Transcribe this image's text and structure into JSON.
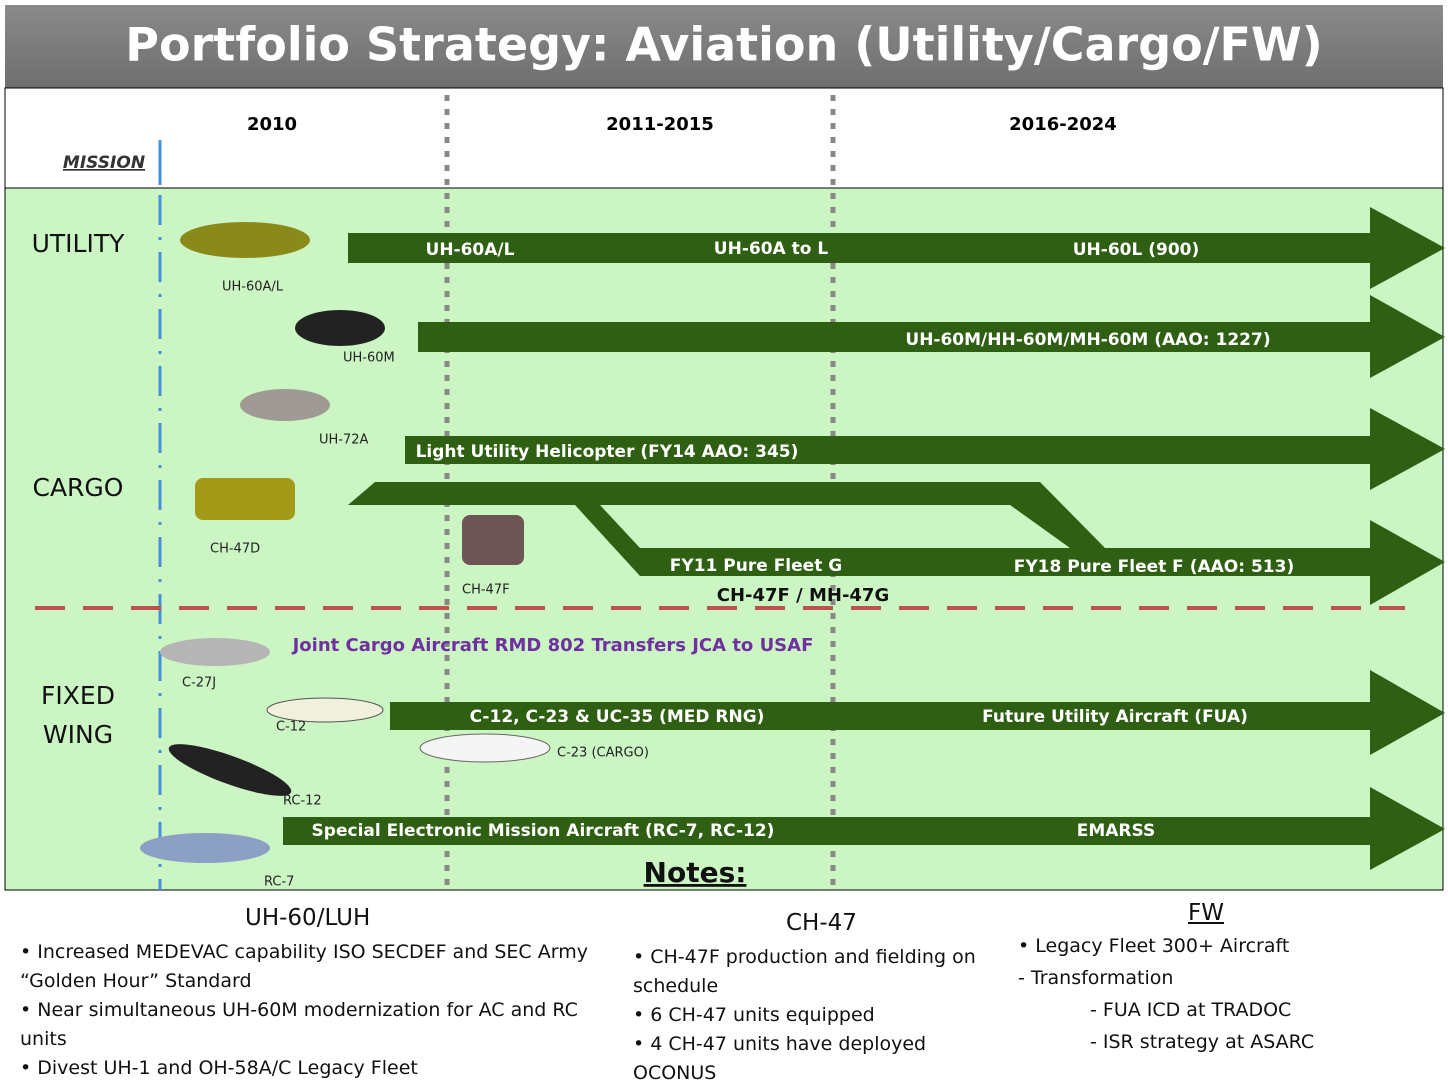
{
  "title": "Portfolio Strategy:  Aviation (Utility/Cargo/FW)",
  "mission_label": "MISSION",
  "periods": [
    "2010",
    "2011-2015",
    "2016-2024"
  ],
  "missions": {
    "utility": "UTILITY",
    "cargo": "CARGO",
    "fixed_wing": [
      "FIXED",
      "WING"
    ]
  },
  "aircraft": [
    "UH-60A/L",
    "UH-60M",
    "UH-72A",
    "CH-47D",
    "CH-47F",
    "C-27J",
    "C-12",
    "C-23 (CARGO)",
    "RC-12",
    "RC-7"
  ],
  "arrow_labels": {
    "utility_1": [
      "UH-60A/L",
      "UH-60A to L",
      "UH-60L (900)"
    ],
    "utility_2": "UH-60M/HH-60M/MH-60M  (AAO: 1227)",
    "luh": "Light Utility Helicopter  (FY14 AAO:  345)",
    "cargo": [
      "FY11 Pure Fleet G",
      "FY18 Pure Fleet F  (AAO: 513)"
    ],
    "cargo_note": "CH-47F / MH-47G",
    "jca": "Joint Cargo Aircraft RMD 802 Transfers JCA to USAF",
    "fw_1": [
      "C-12, C-23 & UC-35 (MED RNG)",
      "Future Utility Aircraft (FUA)"
    ],
    "fw_2": [
      "Special Electronic Mission Aircraft (RC-7, RC-12)",
      "EMARSS"
    ]
  },
  "notes": {
    "heading": "Notes:",
    "columns": [
      {
        "heading": "UH-60/LUH",
        "items": [
          "• Increased MEDEVAC capability ISO SECDEF and SEC Army “Golden Hour” Standard",
          "• Near simultaneous UH-60M modernization for AC and RC units",
          "• Divest UH-1 and OH-58A/C Legacy Fleet"
        ]
      },
      {
        "heading": "CH-47",
        "items": [
          "•  CH-47F production and fielding on schedule",
          "• 6 CH-47 units equipped",
          "• 4 CH-47 units have deployed OCONUS"
        ]
      },
      {
        "heading": "FW",
        "items": [
          "• Legacy Fleet 300+ Aircraft",
          "- Transformation",
          "- FUA  ICD at TRADOC",
          "- ISR  strategy at ASARC"
        ]
      }
    ]
  }
}
